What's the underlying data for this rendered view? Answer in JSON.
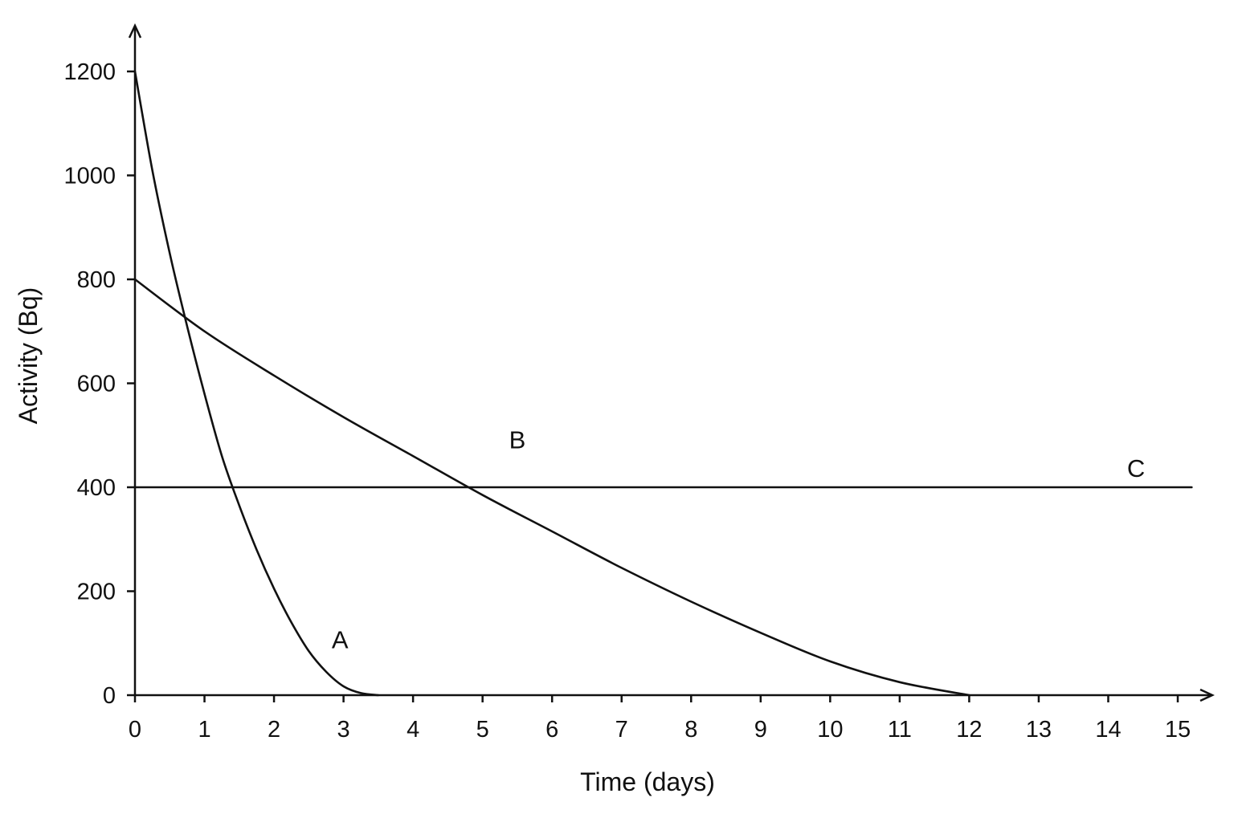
{
  "chart_data": {
    "type": "line",
    "title": "",
    "xlabel": "Time (days)",
    "ylabel": "Activity (Bq)",
    "xlim": [
      0,
      15
    ],
    "ylim": [
      0,
      1200
    ],
    "x_ticks": [
      "0",
      "1",
      "2",
      "3",
      "4",
      "5",
      "6",
      "7",
      "8",
      "9",
      "10",
      "11",
      "12",
      "13",
      "14",
      "15"
    ],
    "y_ticks": [
      "0",
      "200",
      "400",
      "600",
      "800",
      "1000",
      "1200"
    ],
    "grid": false,
    "line_color": "#111111",
    "series": [
      {
        "name": "A",
        "x": [
          0,
          0.25,
          0.5,
          0.75,
          1,
          1.25,
          1.5,
          1.75,
          2,
          2.25,
          2.5,
          2.75,
          3,
          3.25,
          3.5
        ],
        "y": [
          1200,
          1010,
          850,
          710,
          580,
          460,
          365,
          280,
          205,
          140,
          85,
          45,
          17,
          4,
          0
        ]
      },
      {
        "name": "B",
        "x": [
          0,
          1,
          2,
          3,
          4,
          5,
          6,
          7,
          8,
          9,
          10,
          11,
          12
        ],
        "y": [
          800,
          700,
          615,
          535,
          460,
          385,
          315,
          245,
          180,
          120,
          65,
          25,
          0
        ]
      },
      {
        "name": "C",
        "x": [
          0,
          15.2
        ],
        "y": [
          400,
          400
        ]
      }
    ],
    "annotations": [
      {
        "text": "A",
        "x": 2.95,
        "y": 90
      },
      {
        "text": "B",
        "x": 5.5,
        "y": 475
      },
      {
        "text": "C",
        "x": 14.4,
        "y": 420
      }
    ]
  }
}
